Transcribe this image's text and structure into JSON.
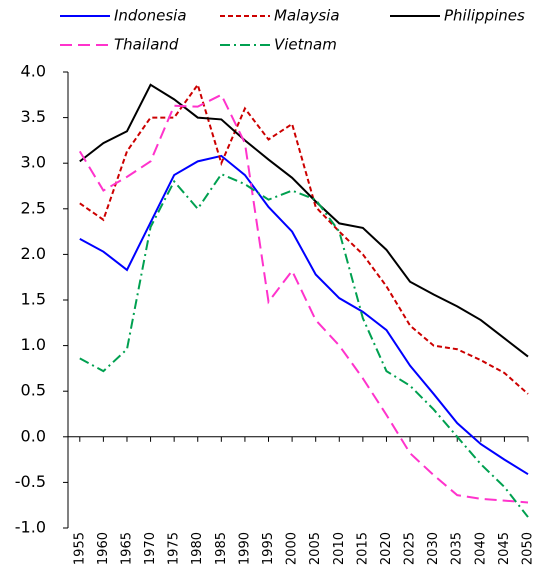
{
  "chart_data": {
    "type": "line",
    "x": [
      1955,
      1960,
      1965,
      1970,
      1975,
      1980,
      1985,
      1990,
      1995,
      2000,
      2005,
      2010,
      2015,
      2020,
      2025,
      2030,
      2035,
      2040,
      2045,
      2050
    ],
    "xlim": [
      1952.5,
      2050
    ],
    "ylim": [
      -1,
      4
    ],
    "yticks": [
      {
        "value": 4,
        "label": "4.0"
      },
      {
        "value": 3.5,
        "label": "3.5"
      },
      {
        "value": 3,
        "label": "3.0"
      },
      {
        "value": 2.5,
        "label": "2.5"
      },
      {
        "value": 2,
        "label": "2.0"
      },
      {
        "value": 1.5,
        "label": "1.5"
      },
      {
        "value": 1,
        "label": "1.0"
      },
      {
        "value": 0.5,
        "label": "0.5"
      },
      {
        "value": 0,
        "label": "0.0"
      },
      {
        "value": -0.5,
        "label": "-0.5"
      },
      {
        "value": -1,
        "label": "-1.0"
      }
    ],
    "grid": false,
    "series": [
      {
        "name": "Indonesia",
        "color": "#0000ff",
        "dash": "solid",
        "values": [
          2.17,
          2.03,
          1.83,
          2.35,
          2.87,
          3.02,
          3.08,
          2.87,
          2.52,
          2.25,
          1.78,
          1.52,
          1.37,
          1.17,
          0.78,
          0.47,
          0.15,
          -0.08,
          -0.25,
          -0.41
        ]
      },
      {
        "name": "Malaysia",
        "color": "#cc0000",
        "dash": "dashed",
        "values": [
          2.56,
          2.38,
          3.13,
          3.5,
          3.5,
          3.86,
          3.0,
          3.6,
          3.26,
          3.43,
          2.52,
          2.25,
          2.0,
          1.65,
          1.22,
          1.0,
          0.96,
          0.84,
          0.7,
          0.47
        ]
      },
      {
        "name": "Philippines",
        "color": "#000000",
        "dash": "solid",
        "values": [
          3.02,
          3.22,
          3.35,
          3.86,
          3.7,
          3.5,
          3.48,
          3.25,
          3.04,
          2.84,
          2.58,
          2.34,
          2.29,
          2.05,
          1.7,
          1.56,
          1.43,
          1.28,
          1.08,
          0.88
        ]
      },
      {
        "name": "Thailand",
        "color": "#ff33cc",
        "dash": "long-dash",
        "values": [
          3.13,
          2.7,
          2.85,
          3.02,
          3.63,
          3.62,
          3.75,
          3.22,
          1.48,
          1.82,
          1.28,
          1.0,
          0.64,
          0.24,
          -0.18,
          -0.42,
          -0.64,
          -0.68,
          -0.7,
          -0.72
        ]
      },
      {
        "name": "Vietnam",
        "color": "#00a050",
        "dash": "dash-dot",
        "values": [
          0.86,
          0.72,
          0.96,
          2.3,
          2.8,
          2.5,
          2.88,
          2.77,
          2.6,
          2.7,
          2.6,
          2.25,
          1.3,
          0.72,
          0.56,
          0.3,
          0.0,
          -0.3,
          -0.55,
          -0.88
        ]
      }
    ]
  }
}
